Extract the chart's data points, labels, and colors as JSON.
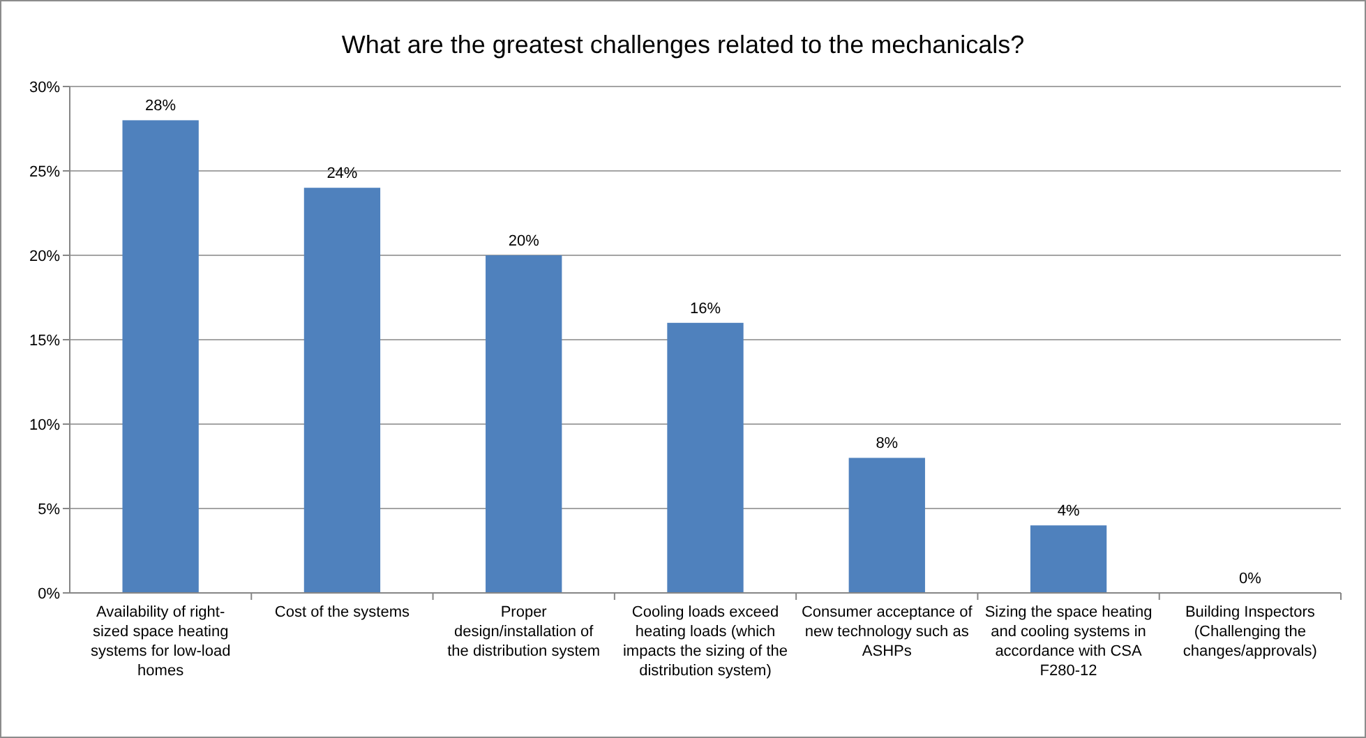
{
  "chart_data": {
    "type": "bar",
    "title": "What are the greatest challenges related to the mechanicals?",
    "categories": [
      "Availability of right-sized space heating systems for low-load homes",
      "Cost of the systems",
      "Proper design/installation of the distribution system",
      "Cooling loads exceed heating loads (which impacts the sizing of the distribution system)",
      "Consumer acceptance of new technology such as ASHPs",
      "Sizing the space heating and cooling systems in accordance with CSA F280-12",
      "Building Inspectors (Challenging the changes/approvals)"
    ],
    "values": [
      28,
      24,
      20,
      16,
      8,
      4,
      0
    ],
    "value_labels": [
      "28%",
      "24%",
      "20%",
      "16%",
      "8%",
      "4%",
      "0%"
    ],
    "color": "#4f81bd",
    "ylim": [
      0,
      30
    ],
    "yticks": [
      {
        "value": 0,
        "label": "0%"
      },
      {
        "value": 5,
        "label": "5%"
      },
      {
        "value": 10,
        "label": "10%"
      },
      {
        "value": 15,
        "label": "15%"
      },
      {
        "value": 20,
        "label": "20%"
      },
      {
        "value": 25,
        "label": "25%"
      },
      {
        "value": 30,
        "label": "30%"
      }
    ],
    "grid": "y"
  }
}
